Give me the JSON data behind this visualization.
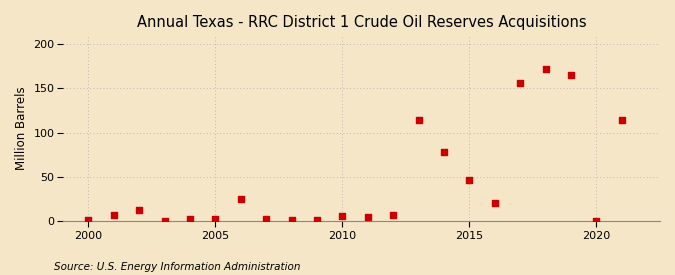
{
  "title": "Annual Texas - RRC District 1 Crude Oil Reserves Acquisitions",
  "ylabel": "Million Barrels",
  "source": "Source: U.S. Energy Information Administration",
  "background_color": "#f5e6c8",
  "plot_bg_color": "#f5e6c8",
  "grid_color": "#aaaaaa",
  "marker_color": "#cc0000",
  "years": [
    2000,
    2001,
    2002,
    2003,
    2004,
    2005,
    2006,
    2007,
    2008,
    2009,
    2010,
    2011,
    2012,
    2013,
    2014,
    2015,
    2016,
    2017,
    2018,
    2019,
    2020,
    2021
  ],
  "values": [
    1.0,
    6.5,
    12.0,
    0.5,
    2.5,
    2.0,
    25.0,
    2.0,
    1.5,
    1.0,
    6.0,
    4.0,
    7.0,
    114.0,
    78.0,
    46.0,
    20.0,
    156.0,
    172.0,
    165.0,
    0.5,
    114.0
  ],
  "xlim": [
    1999,
    2022.5
  ],
  "ylim": [
    0,
    210
  ],
  "yticks": [
    0,
    50,
    100,
    150,
    200
  ],
  "xticks": [
    2000,
    2005,
    2010,
    2015,
    2020
  ],
  "vgrid_years": [
    2000,
    2005,
    2010,
    2015,
    2020
  ],
  "hgrid_values": [
    50,
    100,
    150,
    200
  ],
  "title_fontsize": 10.5,
  "label_fontsize": 8.5,
  "tick_fontsize": 8,
  "source_fontsize": 7.5
}
